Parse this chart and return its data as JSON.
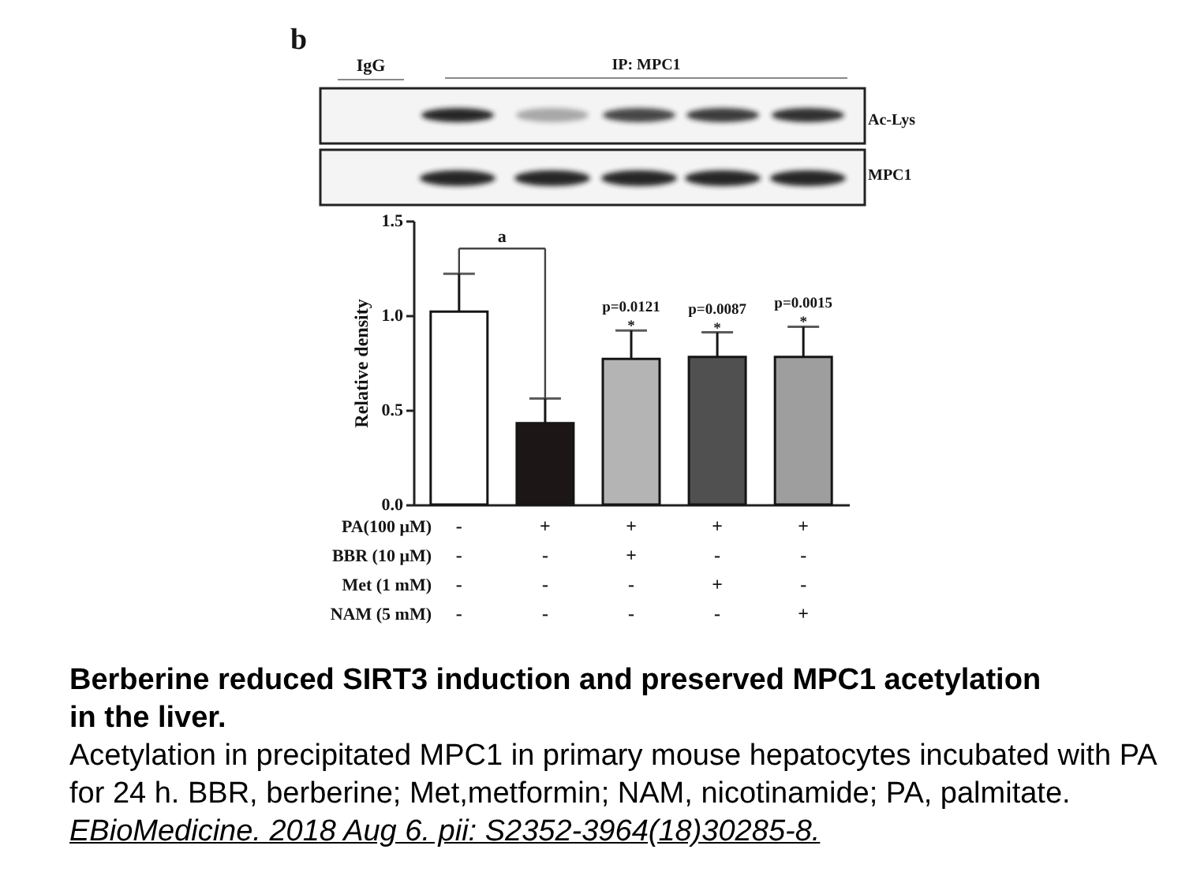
{
  "chart_data": {
    "type": "bar",
    "title": "Berberine reduced SIRT3 induction and preserved MPC1 acetylation in the liver.",
    "subtitle": "Acetylation in precipitated MPC1 in primary mouse hepatocytes incubated with PA for 24 h. BBR, berberine; Met,metformin; NAM, nicotinamide; PA, palmitate.",
    "xlabel": "PA(100 μM)\nBBR (10 μM)\nMet (1 mM)\nNAM (5 mM)",
    "ylabel": "Relative density",
    "categories": [
      "-\n-\n-\n-",
      "+\n-\n-\n-",
      "+\n+\n-\n-",
      "+\n-\n+\n-",
      "+\n-\n-\n+"
    ],
    "values": [
      1.02,
      0.43,
      0.77,
      0.78,
      0.78
    ],
    "colors": [
      "#ffffff",
      "#1c1616",
      "#b4b4b4",
      "#505050",
      "#9e9e9e"
    ],
    "errors": [
      [
        1.02,
        1.22
      ],
      [
        0.43,
        0.56
      ],
      [
        0.77,
        0.92
      ],
      [
        0.78,
        0.91
      ],
      [
        0.78,
        0.94
      ]
    ],
    "ylim": [
      0,
      1.5
    ],
    "yticks": [
      {
        "value": 0,
        "label": "0.0"
      },
      {
        "value": 0.5,
        "label": "0.5"
      },
      {
        "value": 1,
        "label": "1.0"
      },
      {
        "value": 1.5,
        "label": "1.5"
      }
    ],
    "annotations": [
      "b",
      "IgG",
      "IP: MPC1",
      "Ac-Lys",
      "MPC1",
      "a",
      {
        "text": "p=0.0121\n*",
        "x": "+\n+\n-\n-",
        "y": 0.92
      },
      {
        "text": "p=0.0087\n*",
        "x": "+\n-\n+\n-",
        "y": 0.91
      },
      {
        "text": "p=0.0015\n*",
        "x": "+\n-\n-\n+",
        "y": 0.94
      },
      "EBioMedicine. 2018 Aug 6. pii: S2352-3964(18)30285-8."
    ]
  }
}
